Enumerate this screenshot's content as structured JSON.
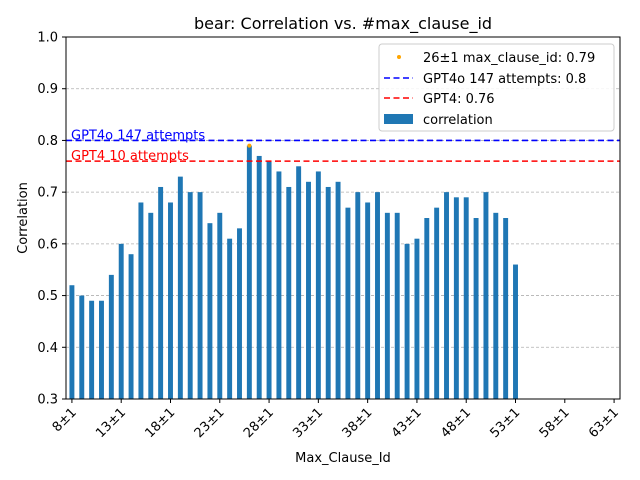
{
  "chart_data": {
    "type": "bar",
    "title": "bear: Correlation vs. #max_clause_id",
    "xlabel": "Max_Clause_Id",
    "ylabel": "Correlation",
    "ylim": [
      0.3,
      1.0
    ],
    "yticks": [
      "0.3",
      "0.4",
      "0.5",
      "0.6",
      "0.7",
      "0.8",
      "0.9",
      "1.0"
    ],
    "x_start": 8,
    "x_end": 63,
    "xtick_labels": [
      "8±1",
      "13±1",
      "18±1",
      "23±1",
      "28±1",
      "33±1",
      "38±1",
      "43±1",
      "48±1",
      "53±1",
      "58±1",
      "63±1"
    ],
    "grid": "horizontal-dashed",
    "legend_position": "top-right",
    "series": [
      {
        "name": "correlation",
        "color": "#1f77b4",
        "x": [
          8,
          9,
          10,
          11,
          12,
          13,
          14,
          15,
          16,
          17,
          18,
          19,
          20,
          21,
          22,
          23,
          24,
          25,
          26,
          27,
          28,
          29,
          30,
          31,
          32,
          33,
          34,
          35,
          36,
          37,
          38,
          39,
          40,
          41,
          42,
          43,
          44,
          45,
          46,
          47,
          48,
          49,
          50,
          51,
          52,
          53
        ],
        "values": [
          0.52,
          0.5,
          0.49,
          0.49,
          0.54,
          0.6,
          0.58,
          0.68,
          0.66,
          0.71,
          0.68,
          0.73,
          0.7,
          0.7,
          0.64,
          0.66,
          0.61,
          0.63,
          0.79,
          0.77,
          0.76,
          0.74,
          0.71,
          0.75,
          0.72,
          0.74,
          0.71,
          0.72,
          0.67,
          0.7,
          0.68,
          0.7,
          0.66,
          0.66,
          0.6,
          0.61,
          0.65,
          0.67,
          0.7,
          0.69,
          0.69,
          0.65,
          0.7,
          0.66,
          0.65,
          0.56
        ]
      }
    ],
    "highlight_point": {
      "name": "26±1 max_clause_id: 0.79",
      "x": 26,
      "y": 0.79,
      "color": "#ffa500"
    },
    "hlines": [
      {
        "name": "GPT4o 147 attempts: 0.8",
        "y": 0.8,
        "color": "#0000ff",
        "annotation": "GPT4o 147 attempts"
      },
      {
        "name": "GPT4: 0.76",
        "y": 0.76,
        "color": "#ff0000",
        "annotation": "GPT4 10 attempts"
      }
    ]
  }
}
